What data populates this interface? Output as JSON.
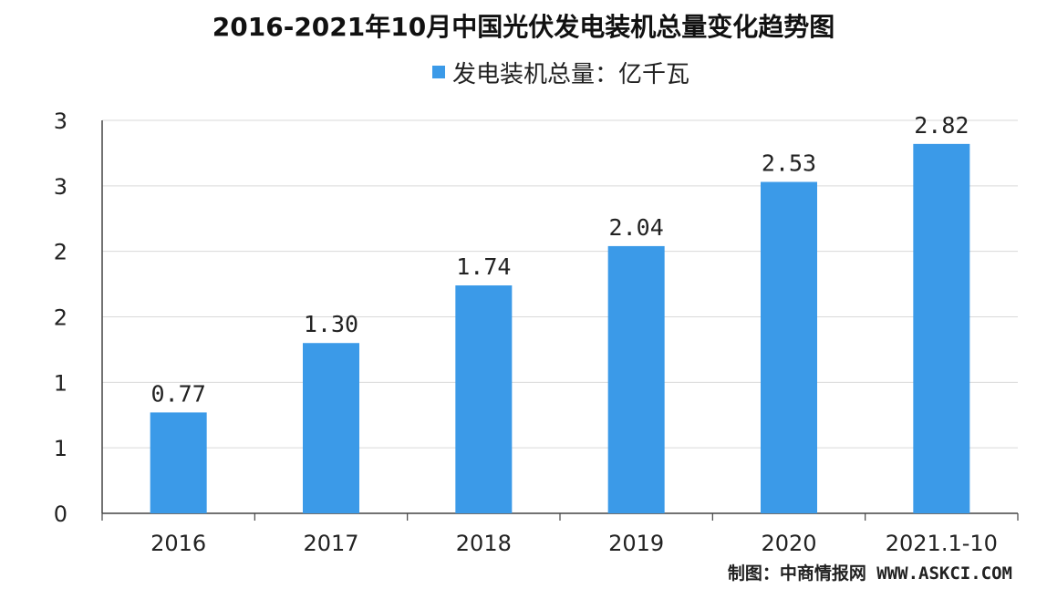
{
  "chart_data": {
    "type": "bar",
    "title": "2016-2021年10月中国光伏发电装机总量变化趋势图",
    "categories": [
      "2016",
      "2017",
      "2018",
      "2019",
      "2020",
      "2021.1-10"
    ],
    "series": [
      {
        "name": "发电装机总量：亿千瓦",
        "values": [
          0.77,
          1.3,
          1.74,
          2.04,
          2.53,
          2.82
        ],
        "labels": [
          "0.77",
          "1.30",
          "1.74",
          "2.04",
          "2.53",
          "2.82"
        ],
        "color": "#3b9ae8"
      }
    ],
    "yticks": [
      "0",
      "1",
      "1",
      "2",
      "2",
      "3",
      "3"
    ],
    "ylim": [
      0,
      3
    ],
    "grid": true,
    "legend_position": "top-center"
  },
  "source": "制图：中商情报网 WWW.ASKCI.COM"
}
